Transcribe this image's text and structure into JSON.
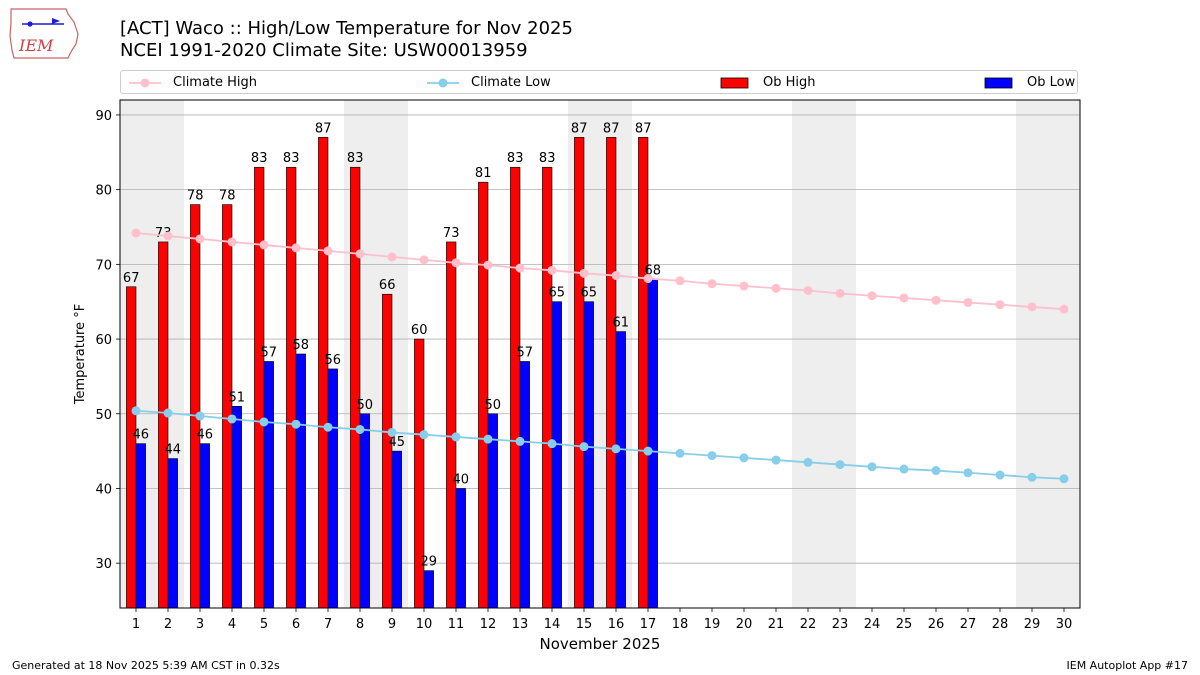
{
  "header": {
    "title_line1": "[ACT] Waco :: High/Low Temperature for Nov 2025",
    "title_line2": "NCEI 1991-2020 Climate Site: USW00013959"
  },
  "logo": {
    "text": "IEM"
  },
  "footer": {
    "left": "Generated at 18 Nov 2025 5:39 AM CST in 0.32s",
    "right": "IEM Autoplot App #17"
  },
  "colors": {
    "climate_high": "#ffc0cb",
    "climate_low": "#87ceeb",
    "ob_high": "#ff0000",
    "ob_low": "#0000ff",
    "weekend_shade": "#eeeeee",
    "grid": "#b0b0b0"
  },
  "legend": {
    "climate_high": "Climate High",
    "climate_low": "Climate Low",
    "ob_high": "Ob High",
    "ob_low": "Ob Low"
  },
  "chart_data": {
    "type": "bar",
    "title": "[ACT] Waco :: High/Low Temperature for Nov 2025",
    "subtitle": "NCEI 1991-2020 Climate Site: USW00013959",
    "xlabel": "November 2025",
    "ylabel": "Temperature °F",
    "xlim": [
      0.5,
      30.5
    ],
    "ylim": [
      24,
      92
    ],
    "yticks": [
      30,
      40,
      50,
      60,
      70,
      80,
      90
    ],
    "grid": "horizontal",
    "legend_position": "top",
    "shaded_weekend_days": [
      1,
      2,
      8,
      9,
      15,
      16,
      22,
      23,
      29,
      30
    ],
    "days": [
      1,
      2,
      3,
      4,
      5,
      6,
      7,
      8,
      9,
      10,
      11,
      12,
      13,
      14,
      15,
      16,
      17,
      18,
      19,
      20,
      21,
      22,
      23,
      24,
      25,
      26,
      27,
      28,
      29,
      30
    ],
    "series": [
      {
        "name": "Ob High",
        "kind": "bar",
        "values": [
          67,
          73,
          78,
          78,
          83,
          83,
          87,
          83,
          66,
          60,
          73,
          81,
          83,
          83,
          87,
          87,
          87
        ]
      },
      {
        "name": "Ob Low",
        "kind": "bar",
        "values": [
          46,
          44,
          46,
          51,
          57,
          58,
          56,
          50,
          45,
          29,
          40,
          50,
          57,
          65,
          65,
          61,
          68
        ]
      },
      {
        "name": "Climate High",
        "kind": "line",
        "values": [
          74.2,
          73.8,
          73.4,
          73.0,
          72.6,
          72.2,
          71.8,
          71.4,
          71.0,
          70.6,
          70.2,
          69.9,
          69.5,
          69.2,
          68.8,
          68.5,
          68.1,
          67.8,
          67.4,
          67.1,
          66.8,
          66.5,
          66.1,
          65.8,
          65.5,
          65.2,
          64.9,
          64.6,
          64.3,
          64.0
        ]
      },
      {
        "name": "Climate Low",
        "kind": "line",
        "values": [
          50.4,
          50.1,
          49.7,
          49.3,
          48.9,
          48.6,
          48.2,
          47.9,
          47.5,
          47.2,
          46.9,
          46.6,
          46.3,
          46.0,
          45.6,
          45.3,
          45.0,
          44.7,
          44.4,
          44.1,
          43.8,
          43.5,
          43.2,
          42.9,
          42.6,
          42.4,
          42.1,
          41.8,
          41.5,
          41.3
        ]
      }
    ]
  }
}
